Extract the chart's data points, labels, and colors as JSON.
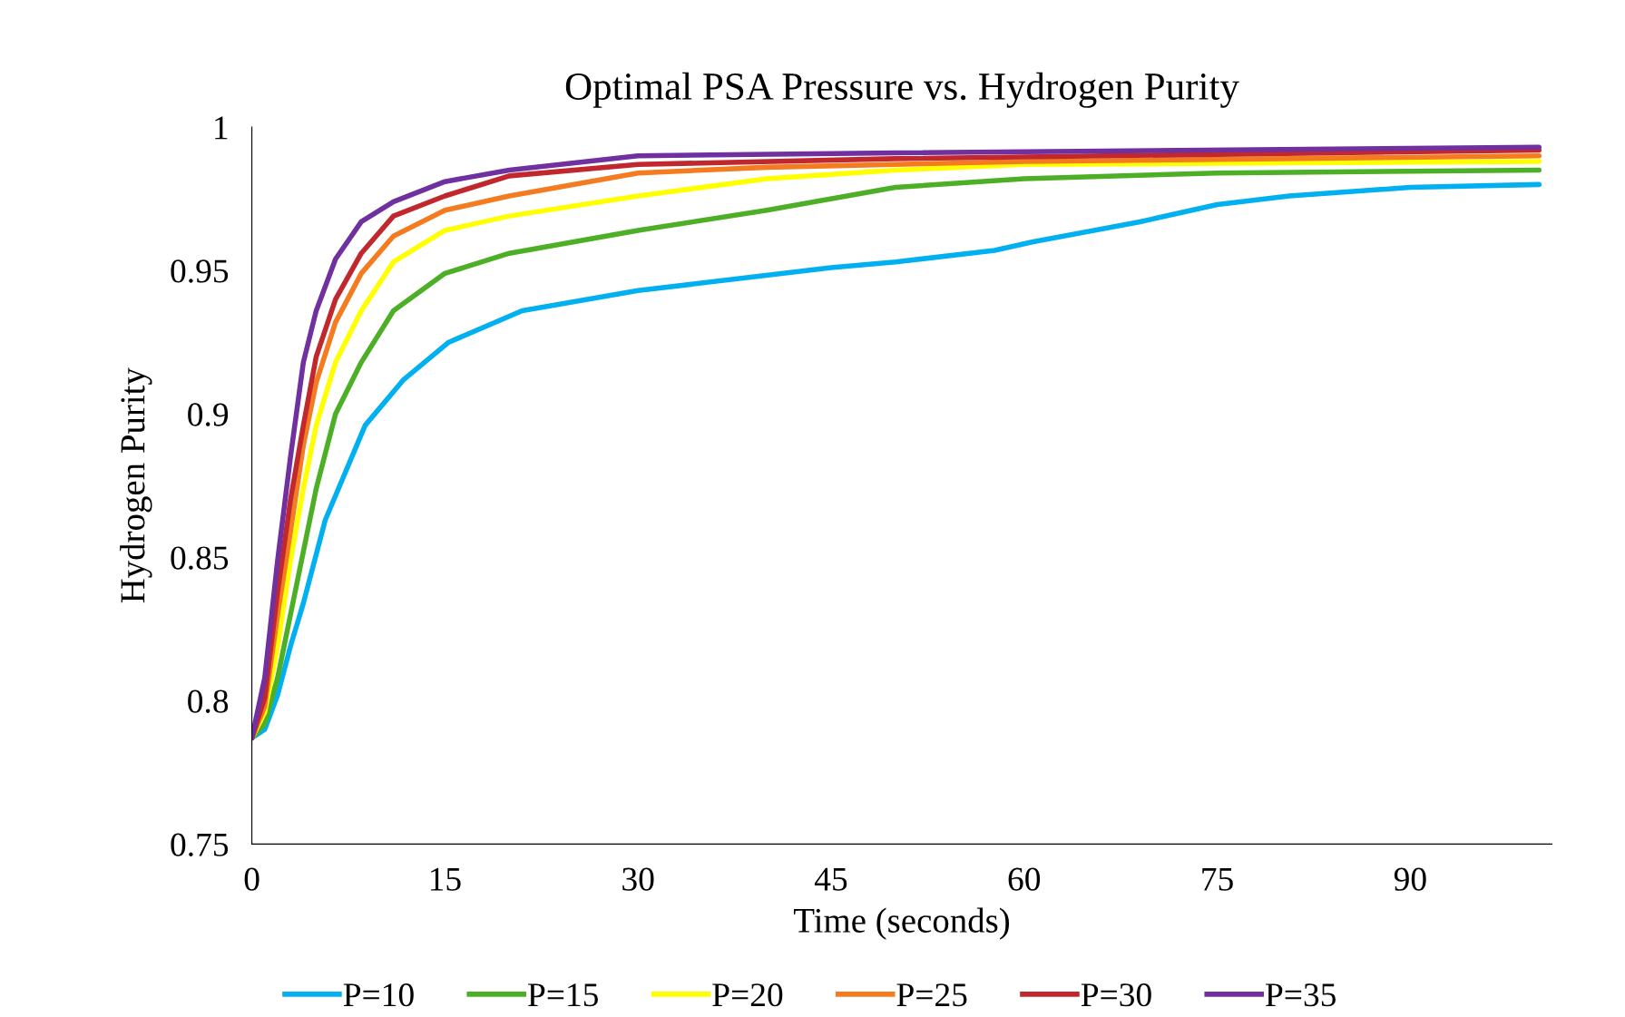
{
  "chart_data": {
    "type": "line",
    "title": "Optimal PSA Pressure vs. Hydrogen Purity",
    "xlabel": "Time (seconds)",
    "ylabel": "Hydrogen Purity",
    "xlim": [
      0,
      101
    ],
    "xticks": [
      0,
      15,
      30,
      45,
      60,
      75,
      90
    ],
    "ylim": [
      0.75,
      1
    ],
    "yticks": [
      {
        "value": 0.75,
        "label": "0.75"
      },
      {
        "value": 0.8,
        "label": "0.8"
      },
      {
        "value": 0.85,
        "label": "0.85"
      },
      {
        "value": 0.9,
        "label": "0.9"
      },
      {
        "value": 0.95,
        "label": "0.95"
      },
      {
        "value": 1,
        "label": "1"
      }
    ],
    "grid": false,
    "legend": "bottom",
    "marker": "none",
    "line_style": "solid",
    "series": [
      {
        "name": "P=10",
        "color": "#00b0f0",
        "x": [
          0,
          1,
          2,
          3,
          4,
          5.7,
          8.8,
          11.8,
          15.3,
          21,
          30,
          45,
          50,
          57.7,
          60.7,
          69,
          75,
          80.6,
          90,
          100
        ],
        "values": [
          0.787,
          0.79,
          0.802,
          0.819,
          0.834,
          0.863,
          0.896,
          0.912,
          0.925,
          0.936,
          0.943,
          0.951,
          0.953,
          0.957,
          0.96,
          0.967,
          0.973,
          0.976,
          0.979,
          0.98
        ]
      },
      {
        "name": "P=15",
        "color": "#4caf25",
        "x": [
          0,
          1,
          2,
          3,
          4,
          5,
          6.5,
          8.5,
          11,
          15,
          20,
          30,
          40,
          50,
          60,
          75,
          100
        ],
        "values": [
          0.787,
          0.792,
          0.808,
          0.83,
          0.852,
          0.874,
          0.9,
          0.918,
          0.936,
          0.949,
          0.956,
          0.964,
          0.971,
          0.979,
          0.982,
          0.984,
          0.985
        ]
      },
      {
        "name": "P=20",
        "color": "#ffff00",
        "x": [
          0,
          1,
          2,
          3,
          4,
          5,
          6.5,
          8.5,
          11,
          15,
          20,
          30,
          40,
          50,
          60,
          100
        ],
        "values": [
          0.787,
          0.796,
          0.819,
          0.849,
          0.874,
          0.896,
          0.918,
          0.936,
          0.953,
          0.964,
          0.969,
          0.976,
          0.982,
          0.985,
          0.987,
          0.988
        ]
      },
      {
        "name": "P=25",
        "color": "#f47b20",
        "x": [
          0,
          1,
          2,
          3,
          4,
          5,
          6.5,
          8.5,
          11,
          15,
          20,
          30,
          40,
          60,
          100
        ],
        "values": [
          0.787,
          0.798,
          0.83,
          0.859,
          0.889,
          0.911,
          0.932,
          0.949,
          0.962,
          0.971,
          0.976,
          0.984,
          0.986,
          0.988,
          0.99
        ]
      },
      {
        "name": "P=30",
        "color": "#c0282e",
        "x": [
          0,
          1,
          2,
          3,
          4,
          5,
          6.5,
          8.5,
          11,
          15,
          20,
          30,
          50,
          100
        ],
        "values": [
          0.787,
          0.801,
          0.838,
          0.87,
          0.896,
          0.92,
          0.94,
          0.956,
          0.969,
          0.976,
          0.983,
          0.987,
          0.989,
          0.992
        ]
      },
      {
        "name": "P=35",
        "color": "#7030a0",
        "x": [
          0,
          1,
          2,
          3,
          4,
          5,
          6.5,
          8.5,
          11,
          15,
          20,
          30,
          50,
          100
        ],
        "values": [
          0.787,
          0.808,
          0.849,
          0.885,
          0.918,
          0.936,
          0.954,
          0.967,
          0.974,
          0.981,
          0.985,
          0.99,
          0.991,
          0.993
        ]
      }
    ]
  }
}
